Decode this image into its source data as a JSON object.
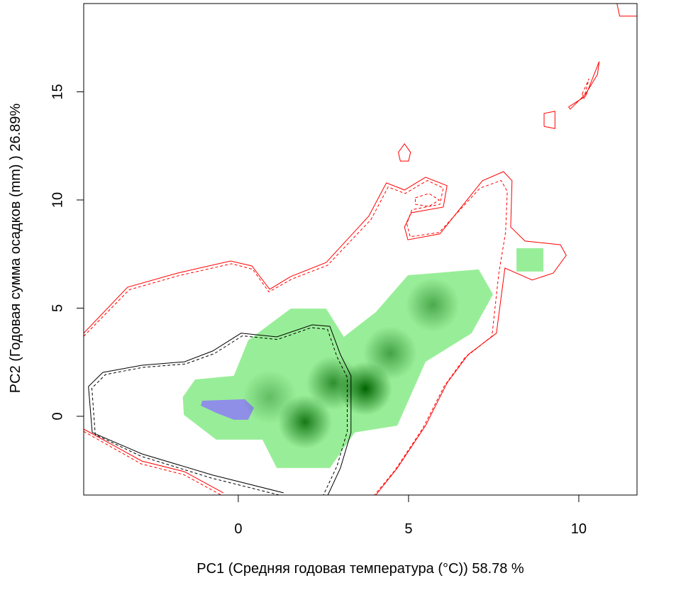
{
  "chart_data": {
    "type": "niche",
    "x_label": "PC1 (Средняя годовая температура (°C)) 58.78 %",
    "y_label": "PC2 (Годовая сумма осадков  (mm) ) 26.89%",
    "xlim": [
      -4.54,
      11.71
    ],
    "ylim": [
      -3.64,
      19.08
    ],
    "xticks": [
      0,
      5,
      10
    ],
    "yticks": [
      0,
      5,
      10,
      15
    ],
    "regions": [
      {
        "color": "#98ee98",
        "x": [
          -1.63,
          -1.27,
          -0.13,
          0.29,
          1.54,
          2.58,
          3.1,
          4.04,
          4.98,
          7.06,
          7.48,
          6.85,
          5.5,
          4.67,
          3.42,
          2.69,
          1.13,
          0.71,
          -0.65,
          -1.6
        ],
        "y": [
          0.89,
          1.7,
          1.87,
          3.51,
          4.98,
          4.98,
          3.67,
          4.82,
          6.52,
          6.79,
          5.64,
          3.84,
          2.52,
          -0.43,
          -0.75,
          -2.39,
          -2.39,
          -1.08,
          -1.08,
          0.07
        ]
      },
      {
        "color": "#98ee98",
        "x": [
          8.17,
          8.96,
          8.96,
          8.17
        ],
        "y": [
          7.77,
          7.77,
          6.69,
          6.69
        ]
      },
      {
        "color": "#8f8fe8",
        "x": [
          -1.06,
          0.19,
          0.46,
          0.29,
          -0.13,
          -0.65,
          -1.1
        ],
        "y": [
          0.72,
          0.79,
          0.39,
          -0.16,
          -0.16,
          0.16,
          0.49
        ]
      }
    ],
    "peaks": {
      "color": "#006400",
      "x": [
        3.73,
        1.96,
        2.79,
        4.46,
        5.71,
        0.92
      ],
      "y": [
        1.28,
        -0.26,
        1.54,
        2.92,
        5.15,
        0.89
      ],
      "values": [
        1.0,
        0.85,
        0.7,
        0.55,
        0.5,
        0.35
      ]
    },
    "series": [
      {
        "color": "#ff0000",
        "dashed": false,
        "x": [
          -4.54,
          -3.25,
          -1.79,
          -0.23,
          0.4,
          0.92,
          1.54,
          2.58,
          3.83,
          4.35,
          4.88,
          5.5,
          6.13,
          6.02,
          5.08,
          4.88,
          4.98,
          5.92,
          7.17,
          7.79,
          8.04,
          8.0,
          8.42,
          9.46,
          9.63,
          9.25,
          8.63,
          7.83,
          7.58,
          6.75,
          6.13,
          5.5,
          4.67,
          4.04,
          null,
          -4.54,
          -2.83,
          -1.58,
          -0.44,
          null,
          4.7,
          4.88,
          5.06,
          5.0,
          4.76,
          4.7,
          null,
          8.98,
          9.3,
          9.3,
          8.98,
          8.98,
          null,
          9.7,
          10.2,
          10.6,
          10.55,
          10.2,
          9.75,
          9.7,
          null,
          11.12,
          11.2,
          11.7
        ],
        "y": [
          3.84,
          5.97,
          6.62,
          7.18,
          6.95,
          5.87,
          6.46,
          7.11,
          9.25,
          10.79,
          10.46,
          11.05,
          10.66,
          9.67,
          9.41,
          8.75,
          8.16,
          8.43,
          10.89,
          11.31,
          10.89,
          8.75,
          8.1,
          7.93,
          7.44,
          6.62,
          6.3,
          6.85,
          3.84,
          2.85,
          1.54,
          -0.43,
          -2.39,
          -3.64,
          null,
          -0.59,
          -2.07,
          -2.56,
          -3.54,
          null,
          12.2,
          12.6,
          12.2,
          11.8,
          11.8,
          12.2,
          null,
          13.4,
          13.3,
          14.1,
          14.0,
          13.4,
          null,
          14.3,
          14.8,
          16.4,
          15.8,
          14.9,
          14.2,
          14.3,
          null,
          19.08,
          18.5,
          18.5
        ]
      },
      {
        "color": "#ff0000",
        "dashed": true,
        "x": [
          -4.54,
          -3.2,
          -1.75,
          -0.2,
          0.42,
          0.9,
          1.58,
          2.62,
          3.9,
          4.4,
          4.9,
          5.55,
          6.02,
          5.92,
          5.1,
          4.95,
          5.05,
          5.9,
          7.1,
          7.72,
          7.9,
          7.85,
          7.65,
          7.45,
          6.65,
          6.05,
          5.42,
          4.6,
          4.0,
          null,
          -4.54,
          -2.85,
          -1.6,
          -0.5,
          null,
          5.2,
          5.6,
          5.9,
          5.6,
          5.2,
          5.2,
          null,
          10.1,
          10.3,
          10.15,
          10.1
        ],
        "y": [
          3.7,
          5.85,
          6.5,
          7.05,
          6.8,
          5.75,
          6.35,
          6.98,
          9.1,
          10.6,
          10.3,
          10.9,
          10.55,
          9.8,
          9.55,
          8.9,
          8.3,
          8.5,
          10.55,
          10.9,
          10.4,
          8.5,
          6.6,
          3.7,
          2.7,
          1.4,
          -0.55,
          -2.5,
          -3.64,
          null,
          -0.7,
          -2.2,
          -2.7,
          -3.64,
          null,
          10.1,
          10.3,
          10.0,
          9.7,
          9.8,
          10.1,
          null,
          14.9,
          15.6,
          14.7,
          14.9
        ]
      },
      {
        "color": "#000000",
        "dashed": false,
        "x": [
          1.33,
          -0.75,
          -2.83,
          -4.29,
          -4.4,
          -3.98,
          -2.83,
          -1.58,
          -0.75,
          0.08,
          1.13,
          2.17,
          2.69,
          3.0,
          3.31,
          3.31,
          3.0,
          2.63
        ],
        "y": [
          -3.54,
          -2.72,
          -1.74,
          -0.75,
          1.38,
          2.03,
          2.36,
          2.52,
          3.02,
          3.84,
          3.67,
          4.23,
          4.16,
          2.85,
          1.87,
          -0.75,
          -2.39,
          -3.64
        ]
      },
      {
        "color": "#000000",
        "dashed": true,
        "x": [
          1.2,
          -0.8,
          -2.85,
          -4.2,
          -4.3,
          -3.9,
          -2.8,
          -1.55,
          -0.7,
          0.12,
          1.15,
          2.15,
          2.62,
          2.9,
          3.2,
          3.2,
          2.9,
          2.5
        ],
        "y": [
          -3.64,
          -2.85,
          -1.85,
          -0.85,
          1.3,
          1.93,
          2.26,
          2.42,
          2.9,
          3.72,
          3.55,
          4.1,
          4.02,
          2.75,
          1.8,
          -0.7,
          -2.3,
          -3.64
        ]
      }
    ]
  }
}
